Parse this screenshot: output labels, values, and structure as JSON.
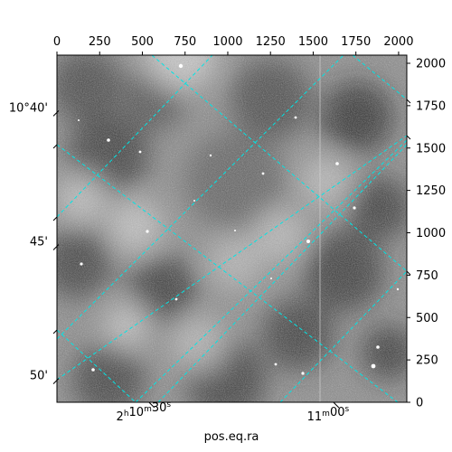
{
  "chart_data": {
    "type": "image",
    "xlabel": "pos.eq.ra",
    "ylabel": "",
    "pixel_axes": {
      "xlim": [
        0,
        2048
      ],
      "ylim": [
        0,
        2048
      ],
      "x_ticks": [
        0,
        250,
        500,
        750,
        1000,
        1250,
        1500,
        1750,
        2000
      ],
      "y_ticks": [
        0,
        250,
        500,
        750,
        1000,
        1250,
        1500,
        1750,
        2000
      ]
    },
    "world_axes": {
      "ra_ticks": [
        {
          "label": "2h10m30s",
          "main": "2",
          "unit1": "h",
          "mid": "10",
          "unit2": "m",
          "sec": "30",
          "unit3": "s",
          "x": 560
        },
        {
          "label": "11m00s",
          "main": "",
          "unit1": "",
          "mid": "11",
          "unit2": "m",
          "sec": "00",
          "unit3": "s",
          "x": 1640
        }
      ],
      "dec_ticks": [
        {
          "label": "10°40'",
          "y": 1710
        },
        {
          "label": "45'",
          "y": 920
        },
        {
          "label": "50'",
          "y": 130
        }
      ]
    },
    "grid_color": "#00e5e5",
    "grid_on": true,
    "colormap": "grayscale"
  }
}
